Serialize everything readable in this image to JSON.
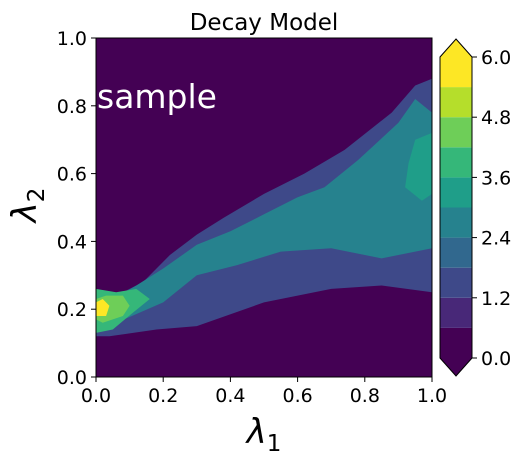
{
  "chart_data": {
    "type": "heatmap",
    "subtype": "filled-contour",
    "title": "Decay Model",
    "xlabel": "λ1",
    "ylabel": "λ2",
    "annotation": "sample",
    "xlim": [
      0.0,
      1.0
    ],
    "ylim": [
      0.0,
      1.0
    ],
    "x_ticks": [
      "0.0",
      "0.2",
      "0.4",
      "0.6",
      "0.8",
      "1.0"
    ],
    "y_ticks": [
      "0.0",
      "0.2",
      "0.4",
      "0.6",
      "0.8",
      "1.0"
    ],
    "grid": false,
    "colormap": "viridis",
    "colorbar": {
      "range": [
        0.0,
        6.0
      ],
      "extend": "both",
      "levels": [
        0.0,
        0.6,
        1.2,
        1.8,
        2.4,
        3.0,
        3.6,
        4.2,
        4.8,
        5.4,
        6.0
      ],
      "tick_labels": [
        "0.0",
        "1.2",
        "2.4",
        "3.6",
        "4.8",
        "6.0"
      ],
      "colors": [
        "#440154",
        "#482878",
        "#3e4989",
        "#31688e",
        "#26828e",
        "#1f9e89",
        "#35b779",
        "#6ece58",
        "#b5de2b",
        "#fde725"
      ],
      "under_color": "#440154",
      "over_color": "#fde725"
    },
    "regions": [
      {
        "level": 0.0,
        "polygon": [
          [
            0,
            0
          ],
          [
            1,
            0
          ],
          [
            1,
            1
          ],
          [
            0,
            1
          ]
        ]
      },
      {
        "level": 1.5,
        "polygon": [
          [
            0.04,
            0.12
          ],
          [
            0.18,
            0.14
          ],
          [
            0.3,
            0.15
          ],
          [
            0.5,
            0.22
          ],
          [
            0.7,
            0.26
          ],
          [
            0.85,
            0.27
          ],
          [
            1.0,
            0.25
          ],
          [
            1.0,
            0.88
          ],
          [
            0.95,
            0.86
          ],
          [
            0.88,
            0.78
          ],
          [
            0.74,
            0.67
          ],
          [
            0.62,
            0.6
          ],
          [
            0.5,
            0.54
          ],
          [
            0.38,
            0.47
          ],
          [
            0.3,
            0.42
          ],
          [
            0.22,
            0.36
          ],
          [
            0.14,
            0.28
          ],
          [
            0.06,
            0.24
          ],
          [
            0.0,
            0.25
          ],
          [
            0.0,
            0.12
          ]
        ]
      },
      {
        "level": 2.7,
        "polygon": [
          [
            0.06,
            0.16
          ],
          [
            0.2,
            0.22
          ],
          [
            0.3,
            0.3
          ],
          [
            0.42,
            0.33
          ],
          [
            0.55,
            0.37
          ],
          [
            0.7,
            0.38
          ],
          [
            0.85,
            0.35
          ],
          [
            1.0,
            0.38
          ],
          [
            1.0,
            0.78
          ],
          [
            0.95,
            0.82
          ],
          [
            0.9,
            0.75
          ],
          [
            0.78,
            0.64
          ],
          [
            0.68,
            0.56
          ],
          [
            0.6,
            0.53
          ],
          [
            0.5,
            0.48
          ],
          [
            0.4,
            0.43
          ],
          [
            0.3,
            0.39
          ],
          [
            0.2,
            0.32
          ],
          [
            0.12,
            0.27
          ],
          [
            0.05,
            0.23
          ]
        ]
      },
      {
        "level": 3.3,
        "polygon": [
          [
            0.92,
            0.56
          ],
          [
            0.97,
            0.52
          ],
          [
            1.0,
            0.54
          ],
          [
            1.0,
            0.72
          ],
          [
            0.95,
            0.7
          ],
          [
            0.93,
            0.63
          ]
        ]
      },
      {
        "level": 3.9,
        "polygon": [
          [
            0.0,
            0.13
          ],
          [
            0.05,
            0.14
          ],
          [
            0.11,
            0.19
          ],
          [
            0.16,
            0.23
          ],
          [
            0.12,
            0.26
          ],
          [
            0.06,
            0.25
          ],
          [
            0.0,
            0.26
          ]
        ]
      },
      {
        "level": 4.5,
        "polygon": [
          [
            0.02,
            0.16
          ],
          [
            0.08,
            0.18
          ],
          [
            0.1,
            0.21
          ],
          [
            0.08,
            0.24
          ],
          [
            0.03,
            0.24
          ],
          [
            0.0,
            0.23
          ],
          [
            0.0,
            0.17
          ]
        ]
      },
      {
        "level": 5.7,
        "polygon": [
          [
            0.0,
            0.18
          ],
          [
            0.03,
            0.18
          ],
          [
            0.04,
            0.21
          ],
          [
            0.02,
            0.23
          ],
          [
            0.0,
            0.22
          ]
        ]
      }
    ]
  }
}
